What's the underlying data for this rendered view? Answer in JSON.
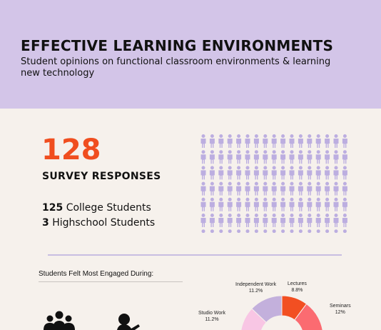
{
  "header": {
    "title": "EFFECTIVE LEARNING ENVIRONMENTS",
    "subtitle": "Student opinions on functional classroom environments  & learning new technology"
  },
  "summary": {
    "total": "128",
    "total_label": "SURVEY RESPONSES",
    "college_count": "125",
    "college_label": "College Students",
    "highschool_count": "3",
    "highschool_label": "Highschool Students"
  },
  "pictogram": {
    "primary_color": "#bcaee0",
    "highlight_color": "#f04e1f",
    "icon": "person-icon"
  },
  "engagement": {
    "title": "Students Felt Most Engaged During:",
    "icons": [
      "group-icon",
      "person-at-desk-icon"
    ]
  },
  "chart_data": {
    "type": "pie",
    "categories": [
      "Lectures",
      "Seminars",
      "Studio Work",
      "Independent Work"
    ],
    "values": [
      8.8,
      12,
      11.2,
      11.2
    ],
    "value_labels": [
      "8.8%",
      "12%",
      "11.2%",
      "11.2%"
    ],
    "colors": [
      "#f24f22",
      "#fb6b71",
      "#f8c6e4",
      "#c3b0dc"
    ]
  }
}
